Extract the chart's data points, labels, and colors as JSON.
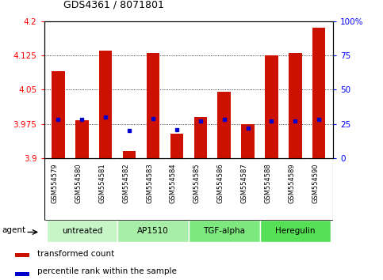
{
  "title": "GDS4361 / 8071801",
  "samples": [
    "GSM554579",
    "GSM554580",
    "GSM554581",
    "GSM554582",
    "GSM554583",
    "GSM554584",
    "GSM554585",
    "GSM554586",
    "GSM554587",
    "GSM554588",
    "GSM554589",
    "GSM554590"
  ],
  "transformed_count": [
    4.09,
    3.983,
    4.135,
    3.915,
    4.13,
    3.953,
    3.99,
    4.045,
    3.975,
    4.125,
    4.13,
    4.185
  ],
  "percentile_rank": [
    28,
    28,
    30,
    20,
    29,
    21,
    27,
    28,
    22,
    27,
    27,
    28
  ],
  "groups": [
    {
      "label": "untreated",
      "indices": [
        0,
        1,
        2
      ],
      "color": "#c8f5c8"
    },
    {
      "label": "AP1510",
      "indices": [
        3,
        4,
        5
      ],
      "color": "#a8eda8"
    },
    {
      "label": "TGF-alpha",
      "indices": [
        6,
        7,
        8
      ],
      "color": "#7de87d"
    },
    {
      "label": "Heregulin",
      "indices": [
        9,
        10,
        11
      ],
      "color": "#55e055"
    }
  ],
  "ylim_left": [
    3.9,
    4.2
  ],
  "ylim_right": [
    0,
    100
  ],
  "yticks_left": [
    3.9,
    3.975,
    4.05,
    4.125,
    4.2
  ],
  "yticks_left_labels": [
    "3.9",
    "3.975",
    "4.05",
    "4.125",
    "4.2"
  ],
  "yticks_right": [
    0,
    25,
    50,
    75,
    100
  ],
  "yticks_right_labels": [
    "0",
    "25",
    "50",
    "75",
    "100%"
  ],
  "bar_color": "#cc1100",
  "dot_color": "#0000cc",
  "bar_bottom": 3.9,
  "bar_width": 0.55,
  "bg_plot": "#ffffff",
  "bg_tick_area": "#c8c8c8",
  "agent_label": "agent",
  "legend_tc": "transformed count",
  "legend_pr": "percentile rank within the sample"
}
